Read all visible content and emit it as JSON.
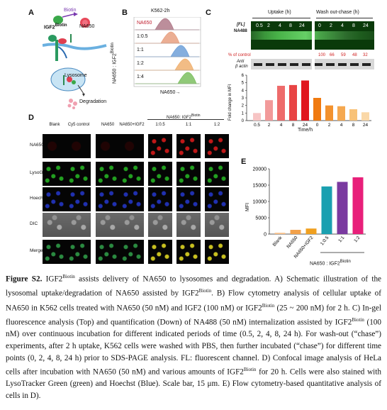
{
  "panelA": {
    "label": "A",
    "biotin": "Biotin",
    "igf2": "IGF2",
    "igf2_sup": "Biotin",
    "na650": "NA650",
    "lysosome": "Lysosome",
    "degradation": "Degradation"
  },
  "panelB": {
    "label": "B",
    "title": "K562-2h",
    "ylabel": "NA650 : IGF2",
    "ylabel_sup": "Biotin",
    "xlabel": "NA650→",
    "rows": [
      "NA650",
      "1:0.5",
      "1:1",
      "1:2",
      "1:4"
    ],
    "colors": [
      "#b07a8a",
      "#e8a080",
      "#6fa0d8",
      "#f0b070",
      "#7cc060"
    ]
  },
  "panelC": {
    "label": "C",
    "uptake": "Uptake (h)",
    "washout": "Wash out-chase (h)",
    "fl": "[FL]",
    "na488": "NA488",
    "lane_labels": [
      "0.5",
      "2",
      "4",
      "8",
      "24",
      "0",
      "2",
      "4",
      "8",
      "24"
    ],
    "pct_label": "% of control",
    "pct_values": [
      "100",
      "66",
      "59",
      "48",
      "32"
    ],
    "anti": "Anti",
    "bactin": "β actin",
    "ylabel": "Fold change in MFI",
    "xlabel": "Time/h",
    "yticks": [
      "0",
      "1",
      "2",
      "3",
      "4",
      "5",
      "6"
    ]
  },
  "chart_data": {
    "type": "bar",
    "categories": [
      "0.5",
      "2",
      "4",
      "8",
      "24",
      "0",
      "2",
      "4",
      "8",
      "24"
    ],
    "values": [
      1.0,
      2.7,
      4.6,
      4.7,
      5.3,
      3.0,
      2.0,
      1.9,
      1.5,
      1.1
    ],
    "colors": [
      "#f7c5c5",
      "#f29a9a",
      "#ee6b6b",
      "#e84444",
      "#e0161e",
      "#f07a10",
      "#f3922e",
      "#f5a850",
      "#f8c278",
      "#fad8a8"
    ],
    "ylim": [
      0,
      6
    ],
    "ylabel": "Fold change in MFI",
    "xlabel": "Time/h"
  },
  "panelD": {
    "label": "D",
    "group_label": "NA650: IGF2",
    "group_sup": "Biotin",
    "columns": [
      "Blank",
      "Cy5 control",
      "NA650",
      "NA650+IGF2",
      "1:0.5",
      "1:1",
      "1:2"
    ],
    "rows": [
      "NA650",
      "LysoGreen",
      "Hoechst",
      "DIC",
      "Merge"
    ]
  },
  "panelE": {
    "label": "E",
    "ylabel": "MFI",
    "yticks": [
      "0",
      "5000",
      "10000",
      "15000",
      "20000"
    ],
    "categories": [
      "Blank",
      "NA650",
      "NA650+IGF2",
      "1:0.5",
      "1:1",
      "1:2"
    ],
    "values": [
      400,
      1300,
      1700,
      14600,
      16000,
      17400
    ],
    "colors": [
      "#f7c08a",
      "#f2a14a",
      "#f0a020",
      "#1aa0b0",
      "#7a3aa0",
      "#e8207a"
    ],
    "ylim": [
      0,
      20000
    ],
    "group_label": "NA650 : IGF2",
    "group_sup": "Biotin"
  },
  "caption": {
    "fig_label": "Figure S2.",
    "igf2": "IGF2",
    "sup": "Biotin",
    "t1": " assists delivery of NA650 to lysosomes and degradation. A) Schematic illustration of the lysosomal uptake/degradation of NA650 assisted by IGF2",
    "t2": ". B) Flow cytometry analysis of cellular uptake of NA650 in K562 cells treated with NA650 (50 nM) and IGF2 (100 nM) or IGF2",
    "t3": " (25 ~ 200 nM) for 2 h. C) In-gel fluorescence analysis (Top) and quantification (Down) of NA488 (50 nM) internalization assisted by IGF2",
    "t4": " (100 nM) over continuous incubation for different indicated periods of time (0.5, 2, 4, 8, 24 h). For wash-out (“chase”) experiments, after 2 h uptake, K562 cells were washed with PBS, then further incubated (“chase”) for different time points (0, 2, 4, 8, 24 h) prior to SDS-PAGE analysis. FL: fluorescent channel. D) Confocal image analysis of HeLa cells after incubation with NA650 (50 nM) and various amounts of IGF2",
    "t5": " for 20 h. Cells were also stained with LysoTracker Green (green) and Hoechst (Blue). Scale bar, 15 μm. E) Flow cytometry-based quantitative analysis of cells in D)."
  }
}
